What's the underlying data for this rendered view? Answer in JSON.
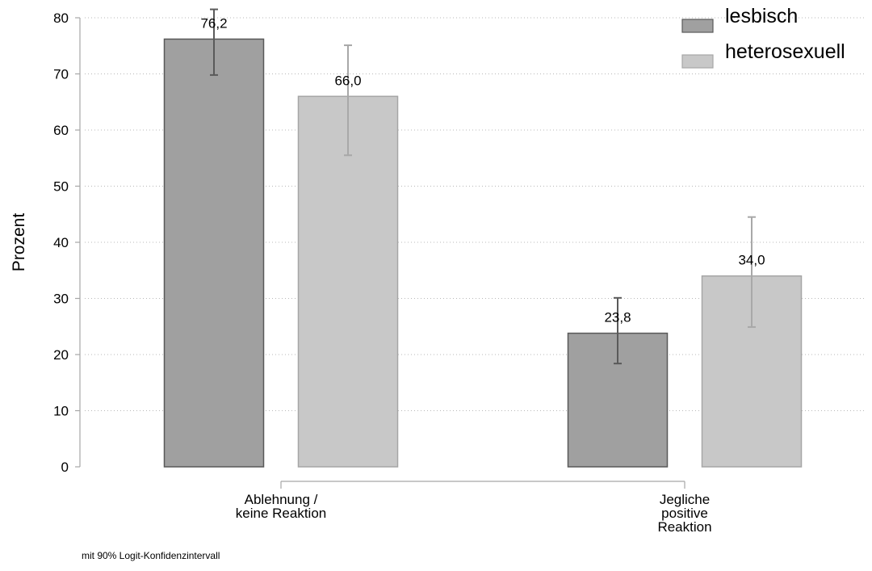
{
  "chart_data": {
    "type": "bar",
    "ylabel": "Prozent",
    "ylim": [
      0,
      80
    ],
    "yticks": [
      "0",
      "10",
      "20",
      "30",
      "40",
      "50",
      "60",
      "70",
      "80"
    ],
    "grid": true,
    "legend_position": "top-right",
    "categories": [
      {
        "lines": [
          "Ablehnung /",
          "keine Reaktion"
        ]
      },
      {
        "lines": [
          "Jegliche",
          "positive",
          "Reaktion"
        ]
      }
    ],
    "series": [
      {
        "name": "lesbisch",
        "color": "#a0a0a0",
        "edge": "#595959",
        "values": [
          76.2,
          23.8
        ],
        "labels": [
          "76,2",
          "23,8"
        ],
        "ci_low": [
          69.8,
          18.4
        ],
        "ci_high": [
          81.5,
          30.1
        ]
      },
      {
        "name": "heterosexuell",
        "color": "#c8c8c8",
        "edge": "#a6a6a6",
        "values": [
          66.0,
          34.0
        ],
        "labels": [
          "66,0",
          "34,0"
        ],
        "ci_low": [
          55.5,
          24.9
        ],
        "ci_high": [
          75.1,
          44.5
        ]
      }
    ],
    "note": "mit 90% Logit-Konfidenzintervall"
  }
}
